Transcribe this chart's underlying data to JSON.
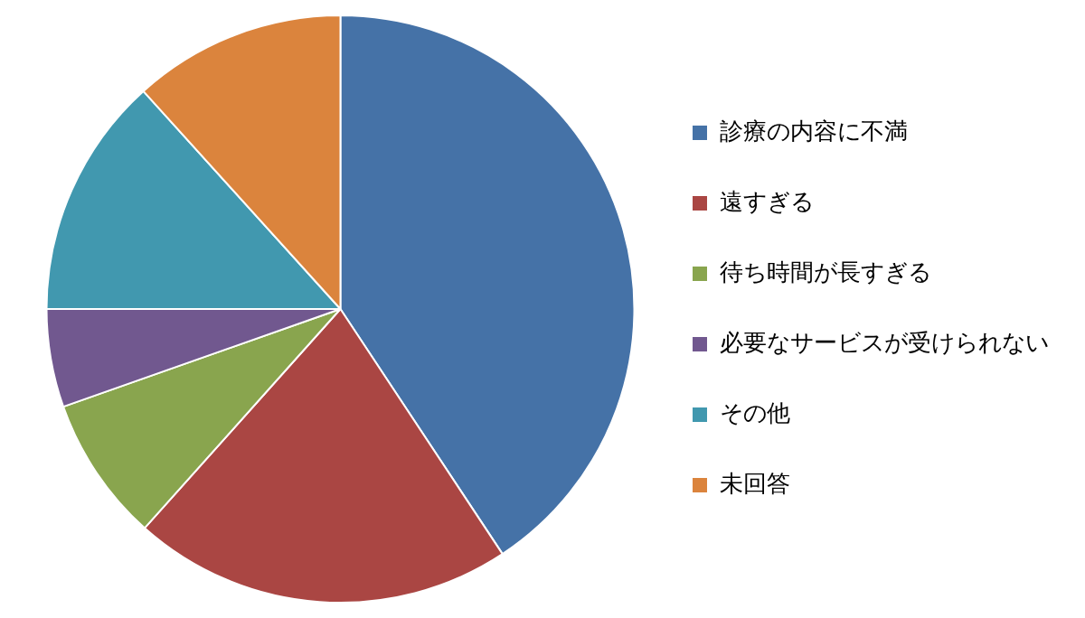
{
  "chart_data": {
    "type": "pie",
    "categories": [
      "診療の内容に不満",
      "遠すぎる",
      "待ち時間が長すぎる",
      "必要なサービスが受けられない",
      "その他",
      "未回答"
    ],
    "values": [
      40.7,
      20.9,
      8.0,
      5.4,
      13.3,
      11.7
    ],
    "colors": [
      "#4572a7",
      "#aa4643",
      "#89a54e",
      "#71588f",
      "#4198af",
      "#db843d"
    ],
    "legend": "right"
  }
}
